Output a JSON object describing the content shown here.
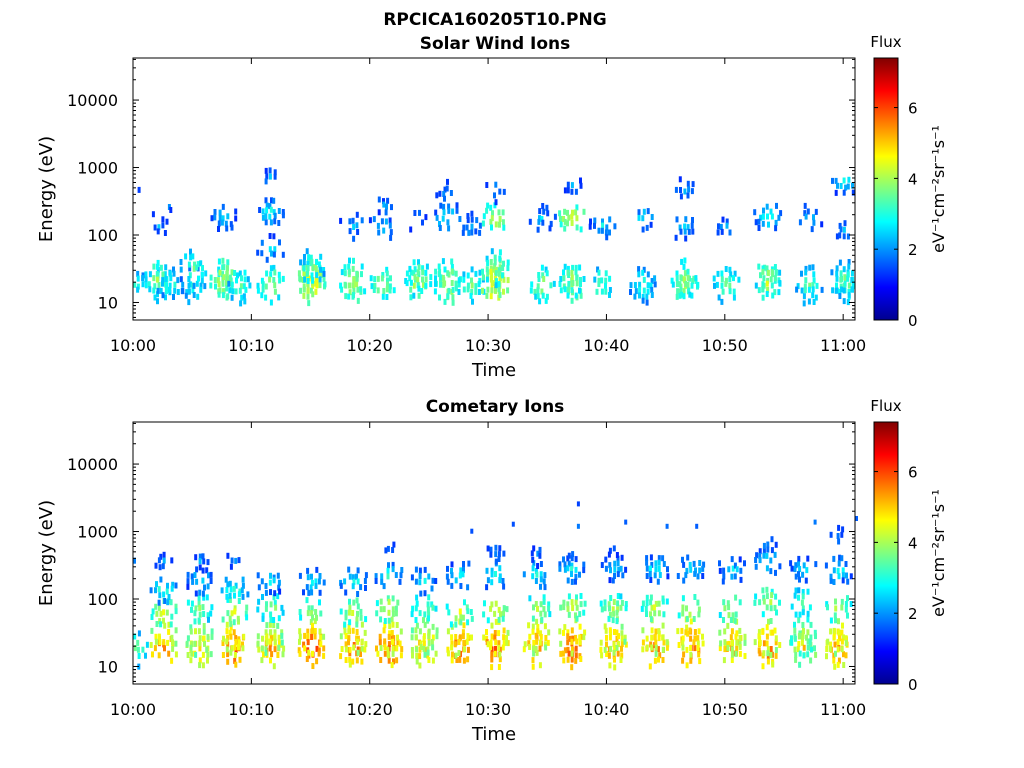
{
  "figure": {
    "title": "RPCICA160205T10.PNG"
  },
  "chart_data": [
    {
      "type": "heatmap",
      "title": "Solar Wind Ions",
      "xlabel": "Time",
      "ylabel": "Energy (eV)",
      "x_ticks": [
        "10:00",
        "10:10",
        "10:20",
        "10:30",
        "10:40",
        "10:50",
        "11:00"
      ],
      "x_range_minutes": [
        0,
        61
      ],
      "y_scale": "log",
      "y_ticks": [
        10,
        100,
        1000,
        10000
      ],
      "y_range": [
        5.5,
        42000
      ],
      "colorbar": {
        "title": "Flux",
        "unit": "eV⁻¹cm⁻²sr⁻¹s⁻¹",
        "range": [
          0,
          7.4
        ],
        "ticks": [
          0,
          2,
          4,
          6
        ],
        "colormap": "jet"
      },
      "bursts": [
        {
          "t": 0,
          "v": [
            [
              20,
              3.5
            ],
            [
              600,
              2.2
            ]
          ]
        },
        {
          "t": 2,
          "v": [
            [
              20,
              4.0
            ],
            [
              25,
              4.2
            ],
            [
              150,
              2.5
            ]
          ]
        },
        {
          "t": 3,
          "v": [
            [
              20,
              3.5
            ],
            [
              300,
              2.0
            ]
          ]
        },
        {
          "t": 5,
          "v": [
            [
              20,
              3.5
            ],
            [
              35,
              3.8
            ]
          ]
        },
        {
          "t": 7.5,
          "v": [
            [
              20,
              4.5
            ],
            [
              25,
              4.6
            ],
            [
              200,
              3.0
            ]
          ]
        },
        {
          "t": 9,
          "v": [
            [
              20,
              3.8
            ]
          ]
        },
        {
          "t": 11.5,
          "v": [
            [
              20,
              4.3
            ],
            [
              70,
              3.0
            ],
            [
              250,
              3.3
            ],
            [
              800,
              2.5
            ]
          ]
        },
        {
          "t": 15,
          "v": [
            [
              20,
              5.2
            ],
            [
              25,
              5.0
            ],
            [
              35,
              3.8
            ]
          ]
        },
        {
          "t": 18.5,
          "v": [
            [
              20,
              4.6
            ],
            [
              25,
              4.4
            ],
            [
              150,
              2.8
            ]
          ]
        },
        {
          "t": 21,
          "v": [
            [
              20,
              4.2
            ],
            [
              150,
              3.0
            ],
            [
              300,
              2.5
            ]
          ]
        },
        {
          "t": 24,
          "v": [
            [
              20,
              4.5
            ],
            [
              25,
              4.2
            ],
            [
              200,
              2.6
            ]
          ]
        },
        {
          "t": 26.5,
          "v": [
            [
              20,
              4.6
            ],
            [
              25,
              4.4
            ],
            [
              200,
              3.3
            ],
            [
              450,
              2.6
            ]
          ]
        },
        {
          "t": 28.5,
          "v": [
            [
              20,
              4.0
            ],
            [
              150,
              2.7
            ]
          ]
        },
        {
          "t": 30.5,
          "v": [
            [
              20,
              5.4
            ],
            [
              25,
              5.0
            ],
            [
              35,
              4.2
            ],
            [
              200,
              4.6
            ],
            [
              500,
              2.5
            ]
          ]
        },
        {
          "t": 34.5,
          "v": [
            [
              20,
              4.3
            ],
            [
              200,
              2.8
            ]
          ]
        },
        {
          "t": 37,
          "v": [
            [
              20,
              4.5
            ],
            [
              25,
              4.3
            ],
            [
              200,
              4.8
            ],
            [
              600,
              2.4
            ]
          ]
        },
        {
          "t": 39.5,
          "v": [
            [
              20,
              3.9
            ],
            [
              150,
              3.0
            ]
          ]
        },
        {
          "t": 43,
          "v": [
            [
              20,
              3.5
            ],
            [
              200,
              3.0
            ]
          ]
        },
        {
          "t": 46.5,
          "v": [
            [
              20,
              4.4
            ],
            [
              25,
              4.2
            ],
            [
              150,
              2.8
            ],
            [
              500,
              2.5
            ]
          ]
        },
        {
          "t": 50,
          "v": [
            [
              20,
              4.0
            ],
            [
              150,
              2.6
            ]
          ]
        },
        {
          "t": 53.5,
          "v": [
            [
              20,
              4.5
            ],
            [
              25,
              4.3
            ],
            [
              200,
              3.3
            ]
          ]
        },
        {
          "t": 57,
          "v": [
            [
              20,
              3.8
            ],
            [
              200,
              2.8
            ]
          ]
        },
        {
          "t": 60,
          "v": [
            [
              20,
              4.0
            ],
            [
              25,
              3.8
            ],
            [
              130,
              2.5
            ],
            [
              700,
              3.2
            ]
          ]
        }
      ]
    },
    {
      "type": "heatmap",
      "title": "Cometary Ions",
      "xlabel": "Time",
      "ylabel": "Energy (eV)",
      "x_ticks": [
        "10:00",
        "10:10",
        "10:20",
        "10:30",
        "10:40",
        "10:50",
        "11:00"
      ],
      "x_range_minutes": [
        0,
        61
      ],
      "y_scale": "log",
      "y_ticks": [
        10,
        100,
        1000,
        10000
      ],
      "y_range": [
        5.5,
        42000
      ],
      "colorbar": {
        "title": "Flux",
        "unit": "eV⁻¹cm⁻²sr⁻¹s⁻¹",
        "range": [
          0,
          7.4
        ],
        "ticks": [
          0,
          2,
          4,
          6
        ],
        "colormap": "jet"
      },
      "bursts": [
        {
          "t": 0,
          "v": [
            [
              20,
              4.0
            ],
            [
              400,
              2.0
            ]
          ]
        },
        {
          "t": 2.5,
          "v": [
            [
              20,
              6.2
            ],
            [
              30,
              5.5
            ],
            [
              70,
              4.8
            ],
            [
              150,
              3.6
            ],
            [
              400,
              2.4
            ]
          ]
        },
        {
          "t": 5.5,
          "v": [
            [
              20,
              5.5
            ],
            [
              30,
              5.0
            ],
            [
              80,
              4.3
            ],
            [
              200,
              3.2
            ],
            [
              400,
              2.4
            ]
          ]
        },
        {
          "t": 8.5,
          "v": [
            [
              20,
              6.5
            ],
            [
              30,
              5.8
            ],
            [
              70,
              4.8
            ],
            [
              150,
              3.6
            ],
            [
              400,
              2.3
            ]
          ]
        },
        {
          "t": 11.5,
          "v": [
            [
              20,
              5.8
            ],
            [
              30,
              5.2
            ],
            [
              80,
              4.3
            ],
            [
              200,
              3.2
            ]
          ]
        },
        {
          "t": 15,
          "v": [
            [
              20,
              6.5
            ],
            [
              30,
              5.8
            ],
            [
              70,
              4.6
            ],
            [
              200,
              3.2
            ]
          ]
        },
        {
          "t": 18.5,
          "v": [
            [
              20,
              6.3
            ],
            [
              30,
              5.6
            ],
            [
              70,
              4.6
            ],
            [
              200,
              3.4
            ]
          ]
        },
        {
          "t": 21.5,
          "v": [
            [
              20,
              6.4
            ],
            [
              30,
              5.8
            ],
            [
              80,
              4.8
            ],
            [
              250,
              3.4
            ],
            [
              500,
              2.5
            ]
          ]
        },
        {
          "t": 24.5,
          "v": [
            [
              20,
              5.8
            ],
            [
              30,
              5.0
            ],
            [
              80,
              4.3
            ],
            [
              200,
              3.2
            ]
          ]
        },
        {
          "t": 27.5,
          "v": [
            [
              20,
              6.3
            ],
            [
              30,
              5.7
            ],
            [
              70,
              4.6
            ],
            [
              250,
              3.3
            ]
          ]
        },
        {
          "t": 30.5,
          "v": [
            [
              20,
              6.5
            ],
            [
              30,
              5.8
            ],
            [
              80,
              4.8
            ],
            [
              250,
              3.4
            ],
            [
              500,
              2.4
            ]
          ]
        },
        {
          "t": 34,
          "v": [
            [
              20,
              6.2
            ],
            [
              30,
              5.5
            ],
            [
              80,
              4.6
            ],
            [
              250,
              3.3
            ],
            [
              500,
              2.4
            ]
          ]
        },
        {
          "t": 37,
          "v": [
            [
              20,
              6.5
            ],
            [
              30,
              5.8
            ],
            [
              80,
              4.8
            ],
            [
              300,
              3.2
            ],
            [
              500,
              2.2
            ]
          ]
        },
        {
          "t": 40.5,
          "v": [
            [
              20,
              6.0
            ],
            [
              30,
              5.4
            ],
            [
              80,
              4.5
            ],
            [
              300,
              3.0
            ],
            [
              600,
              2.2
            ]
          ]
        },
        {
          "t": 44,
          "v": [
            [
              20,
              6.2
            ],
            [
              30,
              5.5
            ],
            [
              80,
              4.6
            ],
            [
              300,
              3.2
            ]
          ]
        },
        {
          "t": 47,
          "v": [
            [
              20,
              6.5
            ],
            [
              30,
              5.8
            ],
            [
              80,
              4.8
            ],
            [
              300,
              3.2
            ]
          ]
        },
        {
          "t": 50.5,
          "v": [
            [
              20,
              6.0
            ],
            [
              30,
              5.4
            ],
            [
              80,
              4.6
            ],
            [
              300,
              3.0
            ]
          ]
        },
        {
          "t": 53.5,
          "v": [
            [
              20,
              6.2
            ],
            [
              30,
              5.5
            ],
            [
              100,
              4.6
            ],
            [
              400,
              3.2
            ],
            [
              700,
              2.3
            ]
          ]
        },
        {
          "t": 56.5,
          "v": [
            [
              20,
              5.2
            ],
            [
              30,
              4.6
            ],
            [
              100,
              4.0
            ],
            [
              300,
              3.0
            ]
          ]
        },
        {
          "t": 59.5,
          "v": [
            [
              20,
              6.0
            ],
            [
              30,
              5.4
            ],
            [
              80,
              4.6
            ],
            [
              300,
              3.2
            ],
            [
              1000,
              2.4
            ]
          ]
        }
      ],
      "sparse_points": [
        {
          "t": 28.5,
          "e": 1100,
          "v": 1.5
        },
        {
          "t": 32,
          "e": 1400,
          "v": 1.5
        },
        {
          "t": 37.5,
          "e": 2800,
          "v": 1.4
        },
        {
          "t": 37.5,
          "e": 1300,
          "v": 1.8
        },
        {
          "t": 41.5,
          "e": 1500,
          "v": 1.6
        },
        {
          "t": 45,
          "e": 1300,
          "v": 1.7
        },
        {
          "t": 47.5,
          "e": 1300,
          "v": 1.6
        },
        {
          "t": 57.5,
          "e": 1500,
          "v": 1.8
        },
        {
          "t": 61,
          "e": 1700,
          "v": 1.6
        }
      ]
    }
  ]
}
